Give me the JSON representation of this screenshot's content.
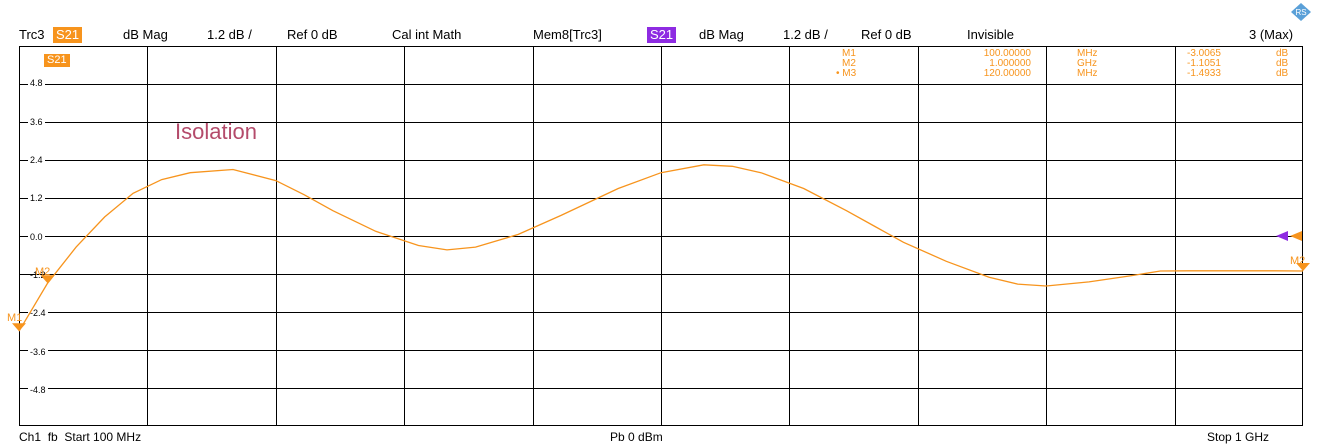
{
  "header": {
    "trace": "Trc3",
    "param": "S21",
    "format": "dB Mag",
    "scale": "1.2 dB /",
    "ref": "Ref 0 dB",
    "math": "Cal int Math",
    "mem_trace": "Mem8[Trc3]",
    "mem_param": "S21",
    "mem_format": "dB Mag",
    "mem_scale": "1.2 dB /",
    "mem_ref": "Ref 0 dB",
    "mem_state": "Invisible",
    "max": "3 (Max)"
  },
  "colors": {
    "trace": "#f7941d",
    "memory": "#8e2be2",
    "annotation": "#b44b6b"
  },
  "plot": {
    "trace_label": "S21",
    "annotation": "Isolation",
    "y_ticks": [
      "4.8",
      "3.6",
      "2.4",
      "1.2",
      "0.0",
      "-1.2",
      "-2.4",
      "-3.6",
      "-4.8"
    ]
  },
  "markers": [
    {
      "name": "M1",
      "value": "100.00000",
      "unit": "MHz",
      "result": "-3.0065",
      "result_unit": "dB"
    },
    {
      "name": "M2",
      "value": "1.000000",
      "unit": "GHz",
      "result": "-1.1051",
      "result_unit": "dB"
    },
    {
      "name": "• M3",
      "value": "120.00000",
      "unit": "MHz",
      "result": "-1.4933",
      "result_unit": "dB"
    }
  ],
  "marker_labels": {
    "m1": "M1",
    "m2_left": "M2",
    "m2_right": "M2"
  },
  "footer": {
    "channel": "Ch1",
    "mode": "fb",
    "start": "Start  100 MHz",
    "power": "Pb    0 dBm",
    "stop": "Stop  1 GHz"
  },
  "chart_data": {
    "type": "line",
    "x_range_mhz": [
      100,
      1000
    ],
    "ylim": [
      -6,
      6
    ],
    "y_ticks": [
      4.8,
      3.6,
      2.4,
      1.2,
      0.0,
      -1.2,
      -2.4,
      -3.6,
      -4.8
    ],
    "series": [
      {
        "name": "S21",
        "x_mhz": [
          100,
          120,
          140,
          160,
          180,
          200,
          220,
          250,
          280,
          300,
          320,
          350,
          380,
          400,
          420,
          450,
          480,
          520,
          550,
          580,
          600,
          620,
          650,
          680,
          700,
          720,
          750,
          780,
          800,
          820,
          850,
          880,
          900,
          920,
          950,
          980,
          1000
        ],
        "y": [
          -3.0065,
          -1.4933,
          -0.35,
          0.6,
          1.35,
          1.78,
          2.0,
          2.1,
          1.75,
          1.3,
          0.8,
          0.15,
          -0.3,
          -0.44,
          -0.35,
          0.05,
          0.65,
          1.5,
          2.0,
          2.25,
          2.2,
          2.0,
          1.5,
          0.8,
          0.3,
          -0.2,
          -0.8,
          -1.3,
          -1.52,
          -1.58,
          -1.45,
          -1.25,
          -1.1051,
          -1.1,
          -1.1,
          -1.1,
          -1.1051
        ]
      }
    ]
  }
}
